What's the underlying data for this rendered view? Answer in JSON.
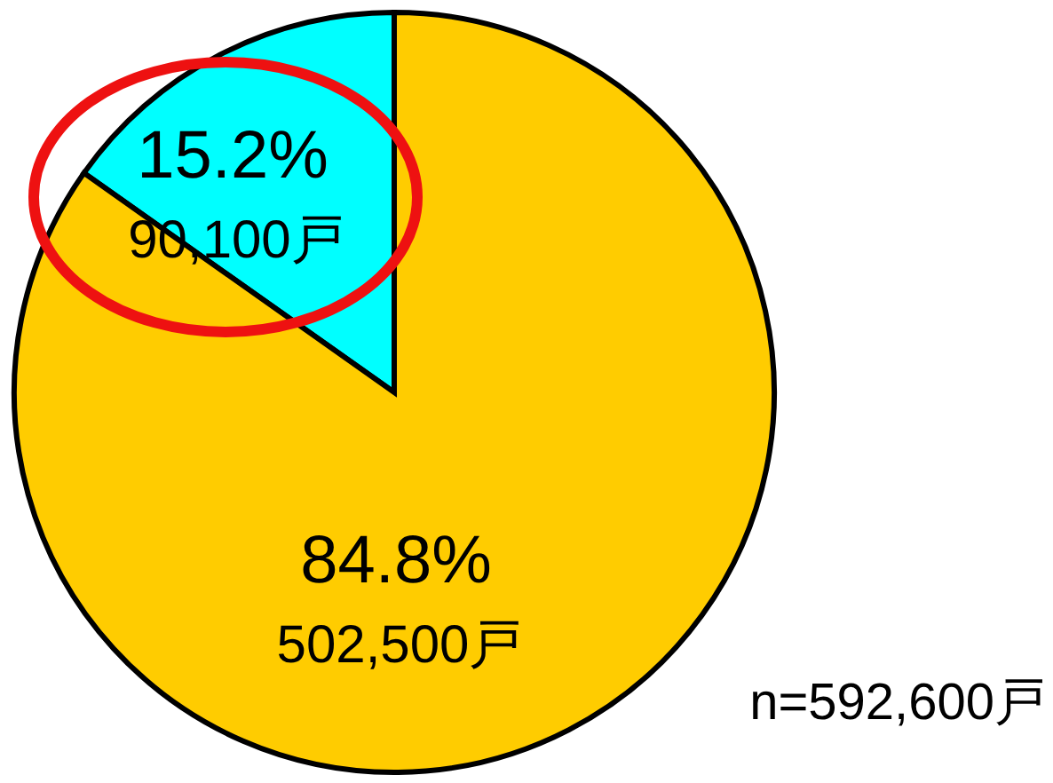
{
  "chart_data": {
    "type": "pie",
    "categories": [
      null,
      null
    ],
    "values": [
      90100,
      502500
    ],
    "colors": [
      "#00ffff",
      "#ffcc00"
    ],
    "value_labels": [
      "15.2%\n90,100戸",
      "84.8%\n502,500戸"
    ],
    "annotations": [
      "n=592,600戸"
    ]
  }
}
